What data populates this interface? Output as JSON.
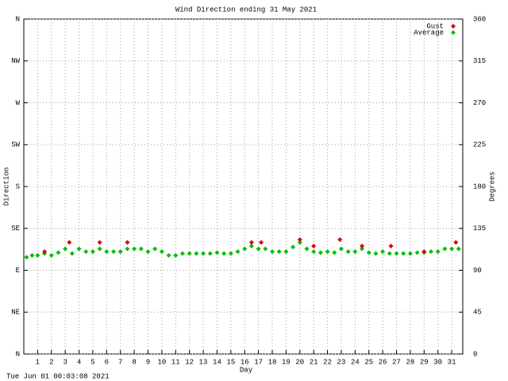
{
  "chart_data": {
    "type": "scatter",
    "title": "Wind Direction ending 31 May 2021",
    "xlabel": "Day",
    "ylabel": "Direction",
    "y2label": "Degrees",
    "footer": "Tue Jun 01 00:03:08 2021",
    "xlim": [
      0,
      31.8
    ],
    "ylim": [
      0,
      360
    ],
    "y2lim": [
      0,
      360
    ],
    "xticks": [
      1,
      2,
      3,
      4,
      5,
      6,
      7,
      8,
      9,
      10,
      11,
      12,
      13,
      14,
      15,
      16,
      17,
      18,
      19,
      20,
      21,
      22,
      23,
      24,
      25,
      26,
      27,
      28,
      29,
      30,
      31
    ],
    "yticks": [
      {
        "value": 0,
        "label": "N"
      },
      {
        "value": 45,
        "label": "NE"
      },
      {
        "value": 90,
        "label": "E"
      },
      {
        "value": 135,
        "label": "SE"
      },
      {
        "value": 180,
        "label": "S"
      },
      {
        "value": 225,
        "label": "SW"
      },
      {
        "value": 270,
        "label": "W"
      },
      {
        "value": 315,
        "label": "NW"
      },
      {
        "value": 360,
        "label": "N"
      }
    ],
    "y2ticks": [
      0,
      45,
      90,
      135,
      180,
      225,
      270,
      315,
      360
    ],
    "grid": true,
    "legend": "top-right",
    "series": [
      {
        "name": "Gust",
        "color": "#e00000",
        "x": [
          1.5,
          3.3,
          5.5,
          7.5,
          16.5,
          17.2,
          20,
          21,
          22.9,
          24.5,
          26.6,
          29,
          31.3
        ],
        "values": [
          110,
          120,
          120,
          120,
          120,
          120,
          123,
          116,
          123,
          116,
          116,
          110,
          120
        ]
      },
      {
        "name": "Average",
        "color": "#00c000",
        "x": [
          0.2,
          0.6,
          1,
          1.5,
          2,
          2.5,
          3,
          3.5,
          4,
          4.5,
          5,
          5.5,
          6,
          6.5,
          7,
          7.5,
          8,
          8.5,
          9,
          9.5,
          10,
          10.5,
          11,
          11.5,
          12,
          12.5,
          13,
          13.5,
          14,
          14.5,
          15,
          15.5,
          16,
          16.5,
          17,
          17.5,
          18,
          18.5,
          19,
          19.5,
          20,
          20.5,
          21,
          21.5,
          22,
          22.5,
          23,
          23.5,
          24,
          24.5,
          25,
          25.5,
          26,
          26.5,
          27,
          27.5,
          28,
          28.5,
          29,
          29.5,
          30,
          30.5,
          31,
          31.5
        ],
        "values": [
          104,
          106,
          106,
          108,
          106,
          109,
          113,
          108,
          113,
          110,
          110,
          113,
          110,
          110,
          110,
          113,
          113,
          113,
          110,
          113,
          110,
          106,
          106,
          108,
          108,
          108,
          108,
          108,
          109,
          108,
          108,
          110,
          113,
          116,
          113,
          113,
          110,
          110,
          110,
          115,
          120,
          113,
          110,
          109,
          110,
          109,
          113,
          110,
          110,
          113,
          109,
          108,
          110,
          108,
          108,
          108,
          108,
          109,
          109,
          110,
          110,
          113,
          113,
          113
        ]
      }
    ]
  }
}
